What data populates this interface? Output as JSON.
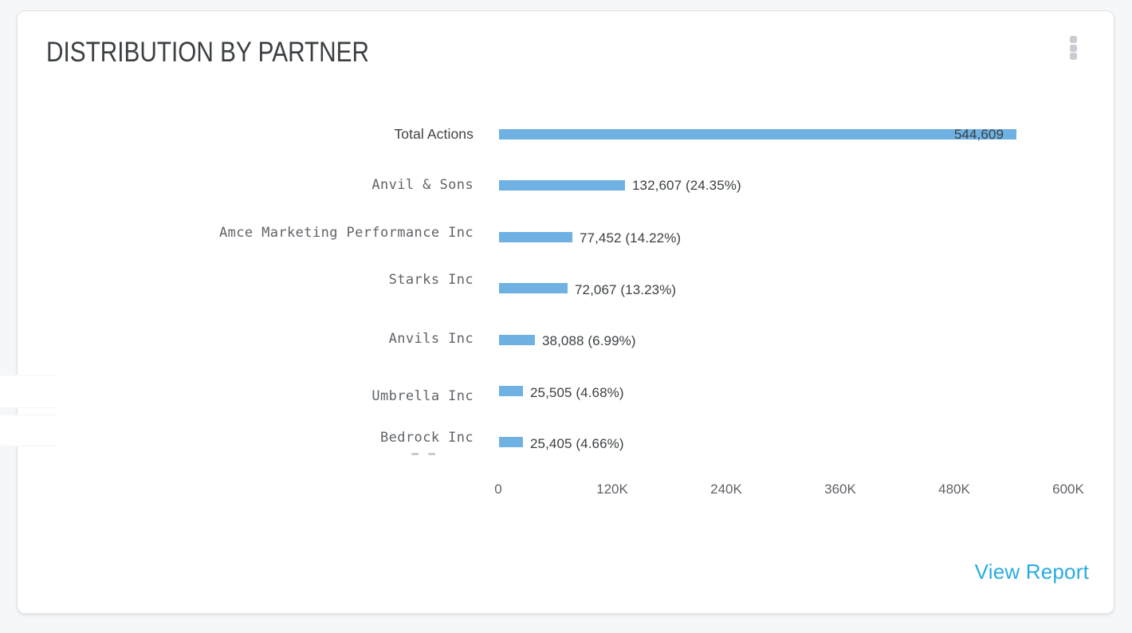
{
  "card": {
    "title": "DISTRIBUTION BY PARTNER",
    "menu_icon": "kebab-menu-icon",
    "footer": {
      "view_report_label": "View Report"
    }
  },
  "colors": {
    "bar_fill": "#6fb1e2",
    "link_blue": "#29abe2",
    "page_background": "#f5f7f9",
    "card_background": "#ffffff",
    "label_gray": "#5f6368",
    "value_text": "#3c4043"
  },
  "chart_data": {
    "type": "bar",
    "orientation": "horizontal",
    "title": "DISTRIBUTION BY PARTNER",
    "categories": [
      "Total Actions",
      "Anvil & Sons",
      "Amce Marketing Performance Inc",
      "Starks Inc",
      "Anvils Inc",
      "Umbrella Inc",
      "Bedrock Inc"
    ],
    "values": [
      544609,
      132607,
      77452,
      72067,
      38088,
      25505,
      25405
    ],
    "value_labels": [
      "544,609",
      "132,607 (24.35%)",
      "77,452 (14.22%)",
      "72,067 (13.23%)",
      "38,088 (6.99%)",
      "25,505 (4.68%)",
      "25,405 (4.66%)"
    ],
    "percentages": [
      null,
      24.35,
      14.22,
      13.23,
      6.99,
      4.68,
      4.66
    ],
    "x_ticks": [
      "0",
      "120K",
      "240K",
      "360K",
      "480K",
      "600K"
    ],
    "x_tick_values": [
      0,
      120000,
      240000,
      360000,
      480000,
      600000
    ],
    "xlim": [
      0,
      600000
    ],
    "grid": false,
    "legend": false,
    "bar_color": "#6fb1e2"
  }
}
